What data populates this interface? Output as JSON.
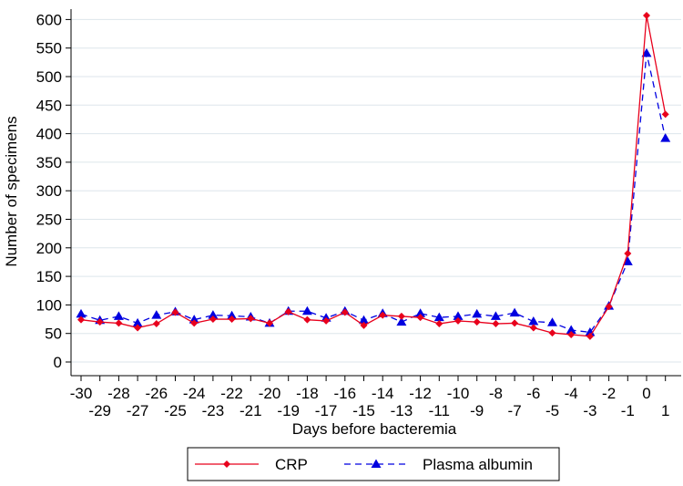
{
  "chart_data": {
    "type": "line",
    "title": "",
    "xlabel": "Days before bacteremia",
    "ylabel": "Number of specimens",
    "x": [
      -30,
      -29,
      -28,
      -27,
      -26,
      -25,
      -24,
      -23,
      -22,
      -21,
      -20,
      -19,
      -18,
      -17,
      -16,
      -15,
      -14,
      -13,
      -12,
      -11,
      -10,
      -9,
      -8,
      -7,
      -6,
      -5,
      -4,
      -3,
      -2,
      -1,
      0,
      1
    ],
    "x_tick_labels": [
      "-30",
      "-29",
      "-28",
      "-27",
      "-26",
      "-25",
      "-24",
      "-23",
      "-22",
      "-21",
      "-20",
      "-19",
      "-18",
      "-17",
      "-16",
      "-15",
      "-14",
      "-13",
      "-12",
      "-11",
      "-10",
      "-9",
      "-8",
      "-7",
      "-6",
      "-5",
      "-4",
      "-3",
      "-2",
      "-1",
      "0",
      "1"
    ],
    "xlim": [
      -30,
      1
    ],
    "ylim": [
      0,
      600
    ],
    "y_ticks": [
      0,
      50,
      100,
      150,
      200,
      250,
      300,
      350,
      400,
      450,
      500,
      550,
      600
    ],
    "grid": true,
    "legend_position": "bottom",
    "series": [
      {
        "name": "CRP",
        "color": "#e8001c",
        "marker": "diamond",
        "line_style": "solid",
        "values": [
          74,
          70,
          68,
          60,
          67,
          87,
          68,
          75,
          75,
          76,
          68,
          88,
          74,
          72,
          87,
          64,
          82,
          80,
          78,
          67,
          72,
          70,
          67,
          68,
          60,
          51,
          48,
          45,
          97,
          190,
          607,
          434
        ]
      },
      {
        "name": "Plasma albumin",
        "color": "#0000e0",
        "marker": "triangle",
        "line_style": "dashed",
        "values": [
          84,
          73,
          80,
          68,
          82,
          88,
          74,
          82,
          81,
          79,
          68,
          89,
          89,
          77,
          89,
          73,
          85,
          70,
          85,
          78,
          80,
          84,
          80,
          86,
          71,
          69,
          56,
          52,
          98,
          176,
          541,
          392
        ]
      }
    ]
  }
}
